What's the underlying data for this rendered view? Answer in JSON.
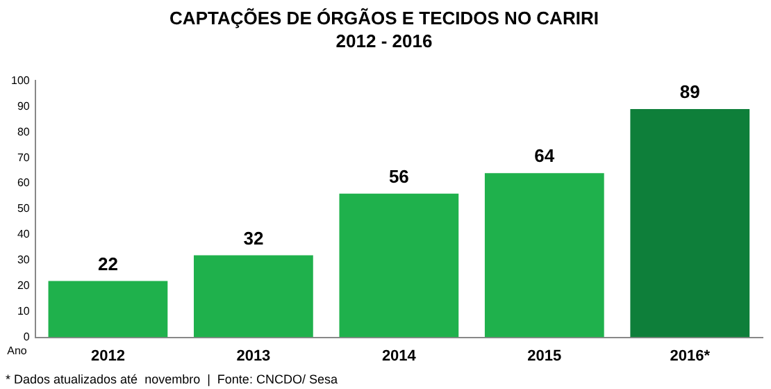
{
  "chart_data": {
    "type": "bar",
    "title": "CAPTAÇÕES DE ÓRGÃOS E TECIDOS NO CARIRI",
    "subtitle": "2012 - 2016",
    "xlabel": "Ano",
    "categories": [
      "2012",
      "2013",
      "2014",
      "2015",
      "2016*"
    ],
    "values": [
      22,
      32,
      56,
      64,
      89
    ],
    "colors": [
      "#1fb14c",
      "#1fb14c",
      "#1fb14c",
      "#1fb14c",
      "#0e7f3a"
    ],
    "ylim": [
      0,
      100
    ],
    "yticks": [
      0,
      10,
      20,
      30,
      40,
      50,
      60,
      70,
      80,
      90,
      100
    ],
    "grid": false,
    "legend": false,
    "data_labels": true,
    "annotations": [
      "* Dados atualizados até  novembro  |  Fonte: CNCDO/ Sesa"
    ]
  }
}
